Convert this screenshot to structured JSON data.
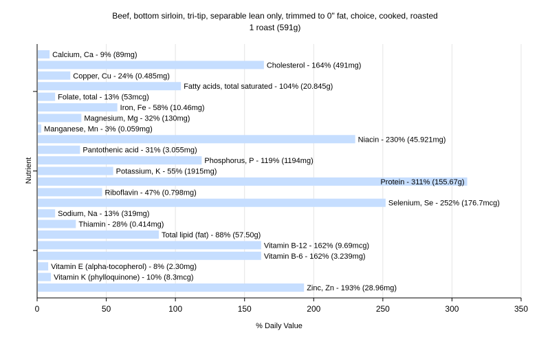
{
  "chart_data": {
    "type": "bar",
    "orientation": "horizontal",
    "title": "Beef, bottom sirloin, tri-tip, separable lean only, trimmed to 0\" fat, choice, cooked, roasted",
    "subtitle": "1 roast (591g)",
    "xlabel": "% Daily Value",
    "ylabel": "Nutrient",
    "xlim": [
      0,
      350
    ],
    "xticks": [
      0,
      50,
      100,
      150,
      200,
      250,
      300,
      350
    ],
    "grid": true,
    "bar_color": "#c6deff",
    "categories": [
      "Calcium, Ca",
      "Cholesterol",
      "Copper, Cu",
      "Fatty acids, total saturated",
      "Folate, total",
      "Iron, Fe",
      "Magnesium, Mg",
      "Manganese, Mn",
      "Niacin",
      "Pantothenic acid",
      "Phosphorus, P",
      "Potassium, K",
      "Protein",
      "Riboflavin",
      "Selenium, Se",
      "Sodium, Na",
      "Thiamin",
      "Total lipid (fat)",
      "Vitamin B-12",
      "Vitamin B-6",
      "Vitamin E (alpha-tocopherol)",
      "Vitamin K (phylloquinone)",
      "Zinc, Zn"
    ],
    "values": [
      9,
      164,
      24,
      104,
      13,
      58,
      32,
      3,
      230,
      31,
      119,
      55,
      311,
      47,
      252,
      13,
      28,
      88,
      162,
      162,
      8,
      10,
      193
    ],
    "labels": [
      "Calcium, Ca - 9% (89mg)",
      "Cholesterol - 164% (491mg)",
      "Copper, Cu - 24% (0.485mg)",
      "Fatty acids, total saturated - 104% (20.845g)",
      "Folate, total - 13% (53mcg)",
      "Iron, Fe - 58% (10.46mg)",
      "Magnesium, Mg - 32% (130mg)",
      "Manganese, Mn - 3% (0.059mg)",
      "Niacin - 230% (45.921mg)",
      "Pantothenic acid - 31% (3.055mg)",
      "Phosphorus, P - 119% (1194mg)",
      "Potassium, K - 55% (1915mg)",
      "Protein - 311% (155.67g)",
      "Riboflavin - 47% (0.798mg)",
      "Selenium, Se - 252% (176.7mcg)",
      "Sodium, Na - 13% (319mg)",
      "Thiamin - 28% (0.414mg)",
      "Total lipid (fat) - 88% (57.50g)",
      "Vitamin B-12 - 162% (9.69mcg)",
      "Vitamin B-6 - 162% (3.239mg)",
      "Vitamin E (alpha-tocopherol) - 8% (2.30mg)",
      "Vitamin K (phylloquinone) - 10% (8.3mcg)",
      "Zinc, Zn - 193% (28.96mg)"
    ]
  }
}
